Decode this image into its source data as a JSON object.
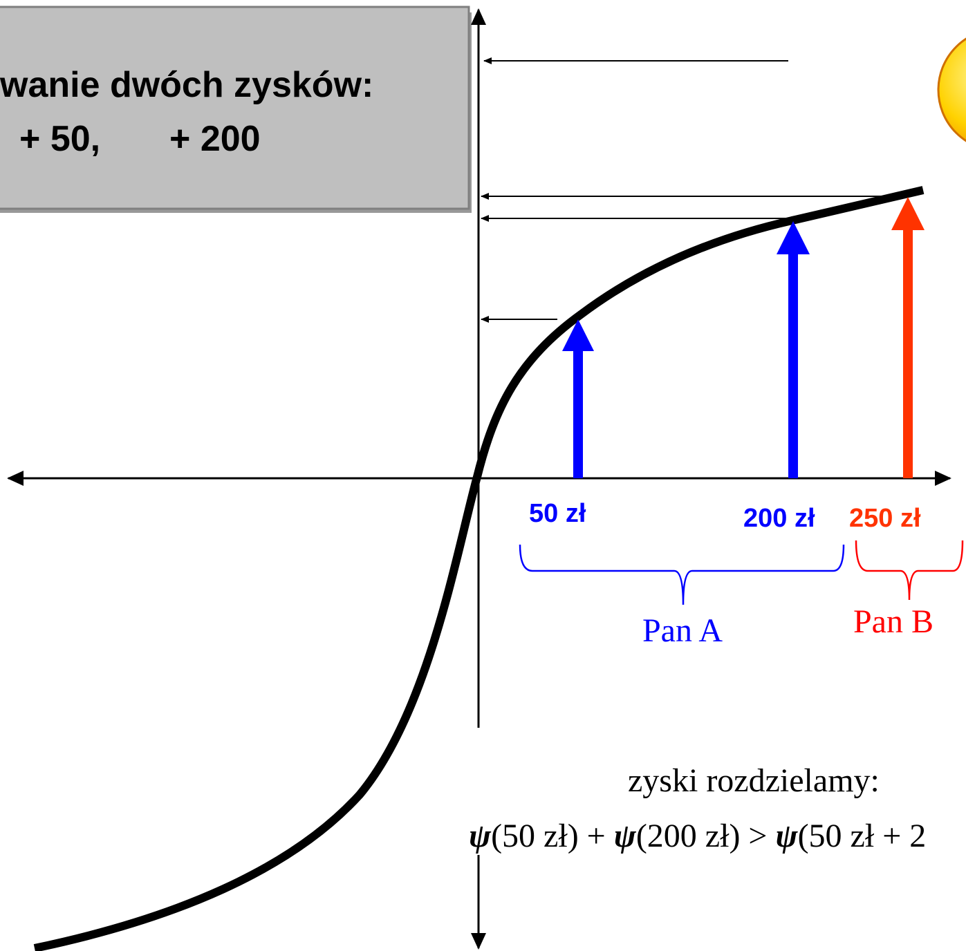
{
  "box": {
    "title": "wanie dwóch zysków:",
    "gains": [
      "+ 50,",
      "+ 200"
    ]
  },
  "axis_labels": {
    "a": "50 zł",
    "b": "200 zł",
    "c": "250 zł"
  },
  "groups": {
    "a": "Pan A",
    "b": "Pan B"
  },
  "note": "zyski rozdzielamy:",
  "formula": [
    "ψ",
    "(50 zł) + ",
    "ψ",
    "(200 zł) > ",
    "ψ",
    "(50 zł + 2"
  ]
}
